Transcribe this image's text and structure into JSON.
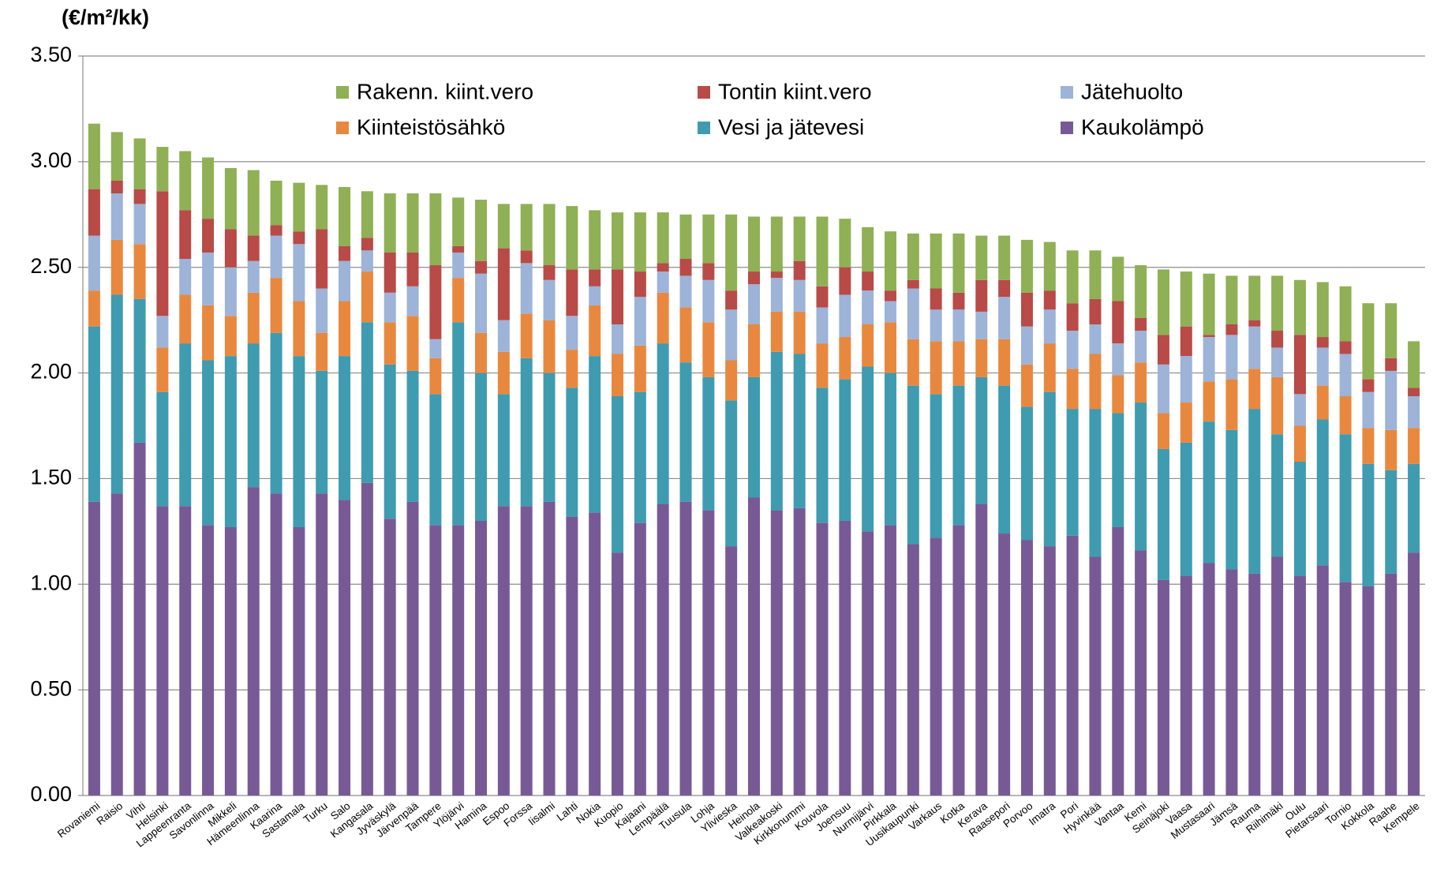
{
  "chart_data": {
    "type": "stacked_bar",
    "y_label": "(€/m²/kk)",
    "categories": [
      "Rovaniemi",
      "Raisio",
      "Vihti",
      "Helsinki",
      "Lappeenranta",
      "Savonlinna",
      "Mikkeli",
      "Hämeenlinna",
      "Kaarina",
      "Sastamala",
      "Turku",
      "Salo",
      "Kangasala",
      "Jyväskylä",
      "Järvenpää",
      "Tampere",
      "Ylöjärvi",
      "Hamina",
      "Espoo",
      "Forssa",
      "Iisalmi",
      "Lahti",
      "Nokia",
      "Kuopio",
      "Kajaani",
      "Lempäälä",
      "Tuusula",
      "Lohja",
      "Ylivieska",
      "Heinola",
      "Valkeakoski",
      "Kirkkonummi",
      "Kouvola",
      "Joensuu",
      "Nurmijärvi",
      "Pirkkala",
      "Uusikaupunki",
      "Varkaus",
      "Kotka",
      "Kerava",
      "Raasepori",
      "Porvoo",
      "Imatra",
      "Pori",
      "Hyvinkää",
      "Vantaa",
      "Kemi",
      "Seinäjoki",
      "Vaasa",
      "Mustasaari",
      "Jämsä",
      "Rauma",
      "Riihimäki",
      "Oulu",
      "Pietarsaari",
      "Tornio",
      "Kokkola",
      "Raahe",
      "Kempele"
    ],
    "series": [
      {
        "name": "Kaukolämpö",
        "color": "#775a95",
        "values": [
          1.39,
          1.43,
          1.67,
          1.37,
          1.37,
          1.28,
          1.27,
          1.46,
          1.43,
          1.27,
          1.43,
          1.4,
          1.48,
          1.31,
          1.39,
          1.28,
          1.28,
          1.3,
          1.37,
          1.37,
          1.39,
          1.32,
          1.34,
          1.15,
          1.29,
          1.38,
          1.39,
          1.35,
          1.18,
          1.41,
          1.35,
          1.36,
          1.29,
          1.3,
          1.25,
          1.28,
          1.19,
          1.22,
          1.28,
          1.38,
          1.24,
          1.21,
          1.18,
          1.23,
          1.13,
          1.27,
          1.16,
          1.02,
          1.04,
          1.1,
          1.07,
          1.05,
          1.13,
          1.04,
          1.09,
          1.01,
          0.99,
          1.05,
          1.15
        ]
      },
      {
        "name": "Vesi ja jätevesi",
        "color": "#3f9bb0",
        "values": [
          0.83,
          0.94,
          0.68,
          0.54,
          0.77,
          0.78,
          0.81,
          0.68,
          0.76,
          0.81,
          0.58,
          0.68,
          0.76,
          0.73,
          0.62,
          0.62,
          0.96,
          0.7,
          0.53,
          0.7,
          0.61,
          0.61,
          0.74,
          0.74,
          0.62,
          0.76,
          0.66,
          0.63,
          0.69,
          0.57,
          0.75,
          0.73,
          0.64,
          0.67,
          0.78,
          0.72,
          0.75,
          0.68,
          0.66,
          0.6,
          0.7,
          0.63,
          0.73,
          0.6,
          0.7,
          0.54,
          0.7,
          0.62,
          0.63,
          0.67,
          0.66,
          0.78,
          0.58,
          0.54,
          0.69,
          0.7,
          0.58,
          0.49,
          0.42
        ]
      },
      {
        "name": "Kiinteistösähkö",
        "color": "#e8883f",
        "values": [
          0.17,
          0.26,
          0.26,
          0.21,
          0.23,
          0.26,
          0.19,
          0.24,
          0.26,
          0.26,
          0.18,
          0.26,
          0.24,
          0.2,
          0.26,
          0.17,
          0.21,
          0.19,
          0.2,
          0.21,
          0.25,
          0.18,
          0.24,
          0.2,
          0.22,
          0.24,
          0.26,
          0.26,
          0.19,
          0.25,
          0.19,
          0.2,
          0.21,
          0.2,
          0.2,
          0.24,
          0.22,
          0.25,
          0.21,
          0.18,
          0.22,
          0.2,
          0.23,
          0.19,
          0.26,
          0.18,
          0.19,
          0.17,
          0.19,
          0.19,
          0.24,
          0.19,
          0.27,
          0.17,
          0.16,
          0.18,
          0.17,
          0.19,
          0.17
        ]
      },
      {
        "name": "Jätehuolto",
        "color": "#9db3d8",
        "values": [
          0.26,
          0.22,
          0.19,
          0.15,
          0.17,
          0.25,
          0.23,
          0.15,
          0.2,
          0.27,
          0.21,
          0.19,
          0.1,
          0.14,
          0.14,
          0.09,
          0.12,
          0.28,
          0.15,
          0.24,
          0.19,
          0.16,
          0.09,
          0.14,
          0.23,
          0.1,
          0.15,
          0.2,
          0.24,
          0.19,
          0.16,
          0.15,
          0.17,
          0.2,
          0.16,
          0.1,
          0.24,
          0.15,
          0.15,
          0.13,
          0.2,
          0.18,
          0.16,
          0.18,
          0.14,
          0.15,
          0.15,
          0.23,
          0.22,
          0.21,
          0.21,
          0.2,
          0.14,
          0.15,
          0.18,
          0.2,
          0.17,
          0.28,
          0.15
        ]
      },
      {
        "name": "Tontin kiint.vero",
        "color": "#b84a47",
        "values": [
          0.22,
          0.06,
          0.07,
          0.59,
          0.23,
          0.16,
          0.18,
          0.12,
          0.05,
          0.06,
          0.28,
          0.07,
          0.06,
          0.19,
          0.16,
          0.35,
          0.03,
          0.06,
          0.34,
          0.06,
          0.07,
          0.22,
          0.08,
          0.26,
          0.12,
          0.04,
          0.08,
          0.08,
          0.09,
          0.06,
          0.03,
          0.09,
          0.1,
          0.13,
          0.09,
          0.05,
          0.04,
          0.1,
          0.08,
          0.15,
          0.08,
          0.16,
          0.09,
          0.13,
          0.12,
          0.2,
          0.06,
          0.14,
          0.14,
          0.01,
          0.05,
          0.03,
          0.08,
          0.28,
          0.05,
          0.06,
          0.06,
          0.06,
          0.04
        ]
      },
      {
        "name": "Rakenn. kiint.vero",
        "color": "#8fb054",
        "values": [
          0.31,
          0.23,
          0.24,
          0.21,
          0.28,
          0.29,
          0.29,
          0.31,
          0.21,
          0.23,
          0.21,
          0.28,
          0.22,
          0.28,
          0.28,
          0.34,
          0.23,
          0.29,
          0.21,
          0.22,
          0.29,
          0.3,
          0.28,
          0.27,
          0.28,
          0.24,
          0.21,
          0.23,
          0.36,
          0.26,
          0.26,
          0.21,
          0.33,
          0.23,
          0.21,
          0.28,
          0.22,
          0.26,
          0.28,
          0.21,
          0.21,
          0.25,
          0.23,
          0.25,
          0.23,
          0.21,
          0.25,
          0.31,
          0.26,
          0.29,
          0.23,
          0.21,
          0.26,
          0.26,
          0.26,
          0.26,
          0.36,
          0.26,
          0.22
        ]
      }
    ],
    "ylim": [
      0,
      3.5
    ],
    "yticks": [
      {
        "value": 0,
        "label": "0.00"
      },
      {
        "value": 0.5,
        "label": "0.50"
      },
      {
        "value": 1,
        "label": "1.00"
      },
      {
        "value": 1.5,
        "label": "1.50"
      },
      {
        "value": 2,
        "label": "2.00"
      },
      {
        "value": 2.5,
        "label": "2.50"
      },
      {
        "value": 3,
        "label": "3.00"
      },
      {
        "value": 3.5,
        "label": "3.50"
      }
    ],
    "grid": true
  }
}
